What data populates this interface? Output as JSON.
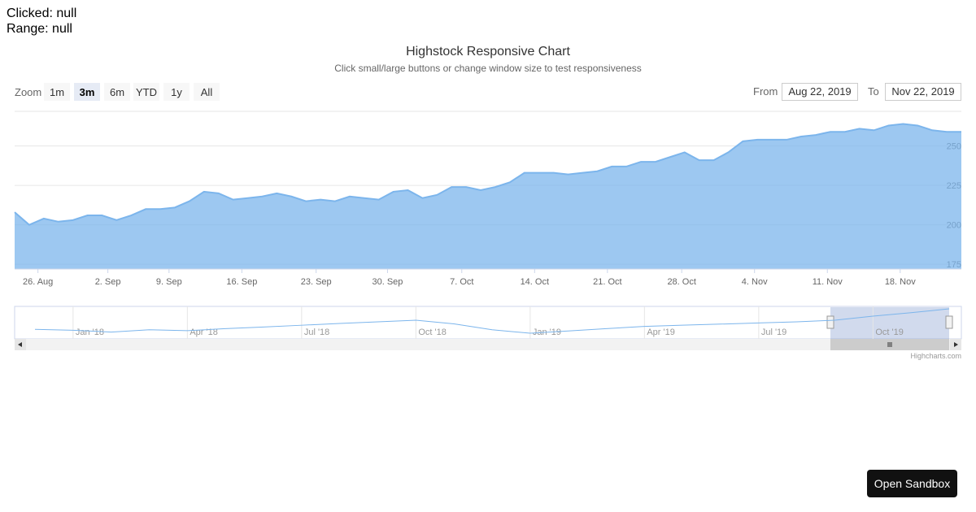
{
  "status": {
    "clicked": "Clicked: null",
    "range": "Range: null"
  },
  "chart_data": {
    "type": "area",
    "title": "Highstock Responsive Chart",
    "subtitle": "Click small/large buttons or change window size to test responsiveness",
    "color": "#7cb5ec",
    "values": [
      208,
      200,
      204,
      202,
      203,
      206,
      206,
      203,
      206,
      210,
      210,
      211,
      215,
      221,
      220,
      216,
      217,
      218,
      220,
      218,
      215,
      216,
      215,
      218,
      217,
      216,
      221,
      222,
      217,
      219,
      224,
      224,
      222,
      224,
      227,
      233,
      233,
      233,
      232,
      233,
      234,
      237,
      237,
      240,
      240,
      243,
      246,
      241,
      241,
      246,
      253,
      254,
      254,
      254,
      256,
      257,
      259,
      259,
      261,
      260,
      263,
      264,
      263,
      260,
      259,
      259
    ],
    "ylim": [
      172,
      272
    ],
    "yticks": [
      175,
      200,
      225,
      250
    ],
    "xticks": [
      {
        "value": 1.6,
        "label": "26. Aug"
      },
      {
        "value": 6.4,
        "label": "2. Sep"
      },
      {
        "value": 10.6,
        "label": "9. Sep"
      },
      {
        "value": 15.6,
        "label": "16. Sep"
      },
      {
        "value": 20.7,
        "label": "23. Sep"
      },
      {
        "value": 25.6,
        "label": "30. Sep"
      },
      {
        "value": 30.7,
        "label": "7. Oct"
      },
      {
        "value": 35.7,
        "label": "14. Oct"
      },
      {
        "value": 40.7,
        "label": "21. Oct"
      },
      {
        "value": 45.8,
        "label": "28. Oct"
      },
      {
        "value": 50.8,
        "label": "4. Nov"
      },
      {
        "value": 55.8,
        "label": "11. Nov"
      },
      {
        "value": 60.8,
        "label": "18. Nov"
      }
    ],
    "grid": true,
    "zoom_label": "Zoom",
    "zoom_buttons": [
      "1m",
      "3m",
      "6m",
      "YTD",
      "1y",
      "All"
    ],
    "selected_button": 1,
    "from_label": "From",
    "from": "Aug 22, 2019",
    "to_label": "To",
    "to": "Nov 22, 2019",
    "navigator": {
      "values": [
        172,
        168,
        160,
        170,
        166,
        175,
        182,
        190,
        198,
        205,
        212,
        196,
        170,
        155,
        165,
        175,
        185,
        190,
        195,
        200,
        205,
        212,
        230,
        245,
        262
      ],
      "xticks": [
        {
          "value": 1,
          "label": "Jan '18"
        },
        {
          "value": 4,
          "label": "Apr '18"
        },
        {
          "value": 7,
          "label": "Jul '18"
        },
        {
          "value": 10,
          "label": "Oct '18"
        },
        {
          "value": 13,
          "label": "Jan '19"
        },
        {
          "value": 16,
          "label": "Apr '19"
        },
        {
          "value": 19,
          "label": "Jul '19"
        },
        {
          "value": 22,
          "label": "Oct '19"
        }
      ]
    },
    "credits": "Highcharts.com"
  },
  "sandbox_button": "Open Sandbox"
}
